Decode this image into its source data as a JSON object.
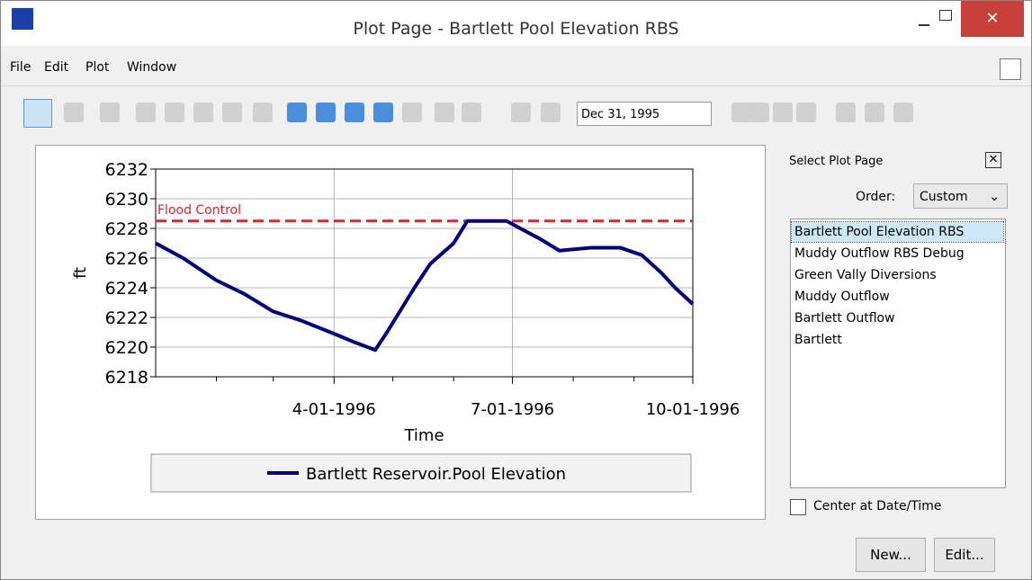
{
  "window": {
    "title": "Plot Page - Bartlett Pool Elevation RBS"
  },
  "menu": [
    "File",
    "Edit",
    "Plot",
    "Window"
  ],
  "toolbar": {
    "date": "Dec 31, 1995"
  },
  "chart_data": {
    "type": "line",
    "xlabel": "Time",
    "ylabel": "ft",
    "x": [
      "1996-01-01",
      "1996-01-15",
      "1996-02-01",
      "1996-02-15",
      "1996-03-01",
      "1996-03-15",
      "1996-04-01",
      "1996-04-12",
      "1996-04-22",
      "1996-04-28",
      "1996-05-05",
      "1996-05-12",
      "1996-05-20",
      "1996-06-01",
      "1996-06-08",
      "1996-06-28",
      "1996-07-05",
      "1996-07-15",
      "1996-07-25",
      "1996-08-10",
      "1996-08-25",
      "1996-09-05",
      "1996-09-15",
      "1996-09-22",
      "1996-10-01"
    ],
    "series": [
      {
        "name": "Bartlett Reservoir.Pool Elevation",
        "color": "#000080",
        "values": [
          6227.0,
          6226.0,
          6224.5,
          6223.6,
          6222.4,
          6221.8,
          6220.9,
          6220.3,
          6219.8,
          6221.0,
          6222.5,
          6224.0,
          6225.6,
          6227.0,
          6228.5,
          6228.5,
          6228.0,
          6227.3,
          6226.5,
          6226.7,
          6226.7,
          6226.2,
          6225.0,
          6224.0,
          6222.9
        ]
      }
    ],
    "annotations": [
      {
        "text": "Flood Control",
        "y": 6228.5,
        "color": "#e8202a"
      }
    ],
    "xlim": [
      "1996-01-01",
      "1996-10-01"
    ],
    "xticks": [
      {
        "value": "1996-04-01",
        "label": "4-01-1996"
      },
      {
        "value": "1996-07-01",
        "label": "7-01-1996"
      },
      {
        "value": "1996-10-01",
        "label": "10-01-1996"
      }
    ],
    "xminorticks": [
      "1996-02-01",
      "1996-03-01",
      "1996-05-01",
      "1996-06-01",
      "1996-08-01",
      "1996-09-01"
    ],
    "ylim": [
      6218,
      6232
    ],
    "yticks": [
      6218,
      6220,
      6222,
      6224,
      6226,
      6228,
      6230,
      6232
    ],
    "grid": true
  },
  "side": {
    "heading": "Select Plot Page",
    "order_label": "Order:",
    "order_value": "Custom",
    "pages": [
      "Bartlett Pool Elevation RBS",
      "Muddy Outflow RBS Debug",
      "Green Vally Diversions",
      "Muddy Outflow",
      "Bartlett Outflow",
      "Bartlett"
    ],
    "center_label": "Center at Date/Time"
  },
  "buttons": [
    "New...",
    "Edit..."
  ]
}
